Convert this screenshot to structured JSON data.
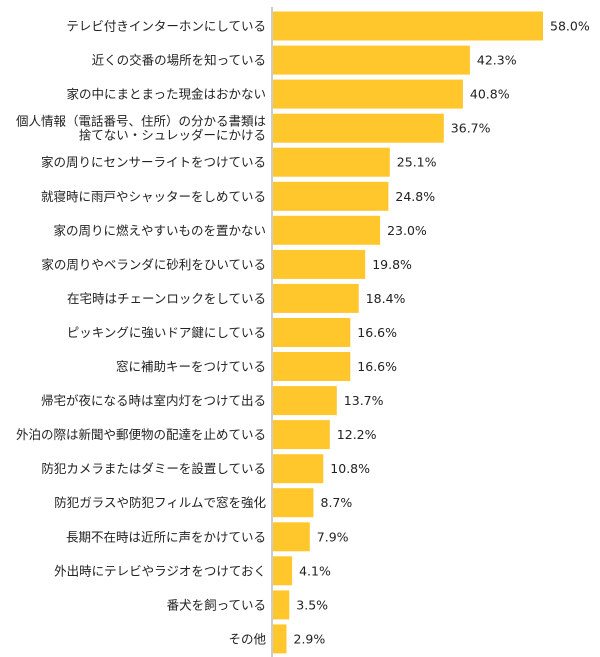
{
  "chart_data": {
    "type": "bar",
    "orientation": "horizontal",
    "categories": [
      [
        "テレビ付きインターホンにしている"
      ],
      [
        "近くの交番の場所を知っている"
      ],
      [
        "家の中にまとまった現金はおかない"
      ],
      [
        "個人情報（電話番号、住所）の分かる書類は",
        "捨てない・シュレッダーにかける"
      ],
      [
        "家の周りにセンサーライトをつけている"
      ],
      [
        "就寝時に雨戸やシャッターをしめている"
      ],
      [
        "家の周りに燃えやすいものを置かない"
      ],
      [
        "家の周りやベランダに砂利をひいている"
      ],
      [
        "在宅時はチェーンロックをしている"
      ],
      [
        "ピッキングに強いドア鍵にしている"
      ],
      [
        "窓に補助キーをつけている"
      ],
      [
        "帰宅が夜になる時は室内灯をつけて出る"
      ],
      [
        "外泊の際は新聞や郵便物の配達を止めている"
      ],
      [
        "防犯カメラまたはダミーを設置している"
      ],
      [
        "防犯ガラスや防犯フィルムで窓を強化"
      ],
      [
        "長期不在時は近所に声をかけている"
      ],
      [
        "外出時にテレビやラジオをつけておく"
      ],
      [
        "番犬を飼っている"
      ],
      [
        "その他"
      ]
    ],
    "values": [
      58.0,
      42.3,
      40.8,
      36.7,
      25.1,
      24.8,
      23.0,
      19.8,
      18.4,
      16.6,
      16.6,
      13.7,
      12.2,
      10.8,
      8.7,
      7.9,
      4.1,
      3.5,
      2.9
    ],
    "value_labels": [
      "58.0%",
      "42.3%",
      "40.8%",
      "36.7%",
      "25.1%",
      "24.8%",
      "23.0%",
      "19.8%",
      "18.4%",
      "16.6%",
      "16.6%",
      "13.7%",
      "12.2%",
      "10.8%",
      "8.7%",
      "7.9%",
      "4.1%",
      "3.5%",
      "2.9%"
    ],
    "xlim": [
      0,
      60
    ],
    "bar_color": "#FFC72C",
    "axis_color": "#999999",
    "grid": false
  }
}
